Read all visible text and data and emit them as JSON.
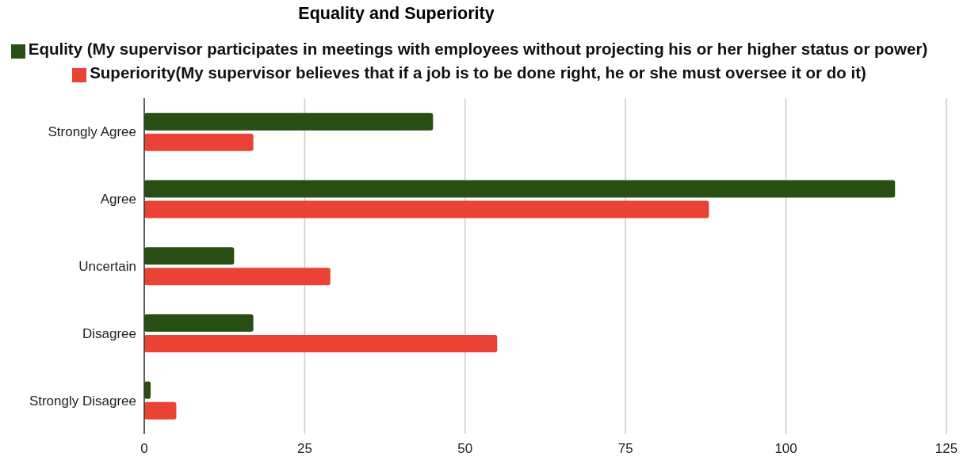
{
  "chart_data": {
    "type": "bar",
    "orientation": "horizontal",
    "title": "Equality and Superiority",
    "categories": [
      "Strongly Agree",
      "Agree",
      "Uncertain",
      "Disagree",
      "Strongly Disagree"
    ],
    "series": [
      {
        "name": "Equlity (My supervisor participates in meetings with employees without projecting his or her higher status or power)",
        "color": "#274e13",
        "values": [
          45,
          117,
          14,
          17,
          1
        ]
      },
      {
        "name": "Superiority(My supervisor believes that if a job is to be done right, he or she must oversee it or do it)",
        "color": "#ea4335",
        "values": [
          17,
          88,
          29,
          55,
          5
        ]
      }
    ],
    "xlim": [
      0,
      125
    ],
    "xticks": [
      0,
      25,
      50,
      75,
      100,
      125
    ],
    "grid": "x",
    "legend": "top"
  }
}
